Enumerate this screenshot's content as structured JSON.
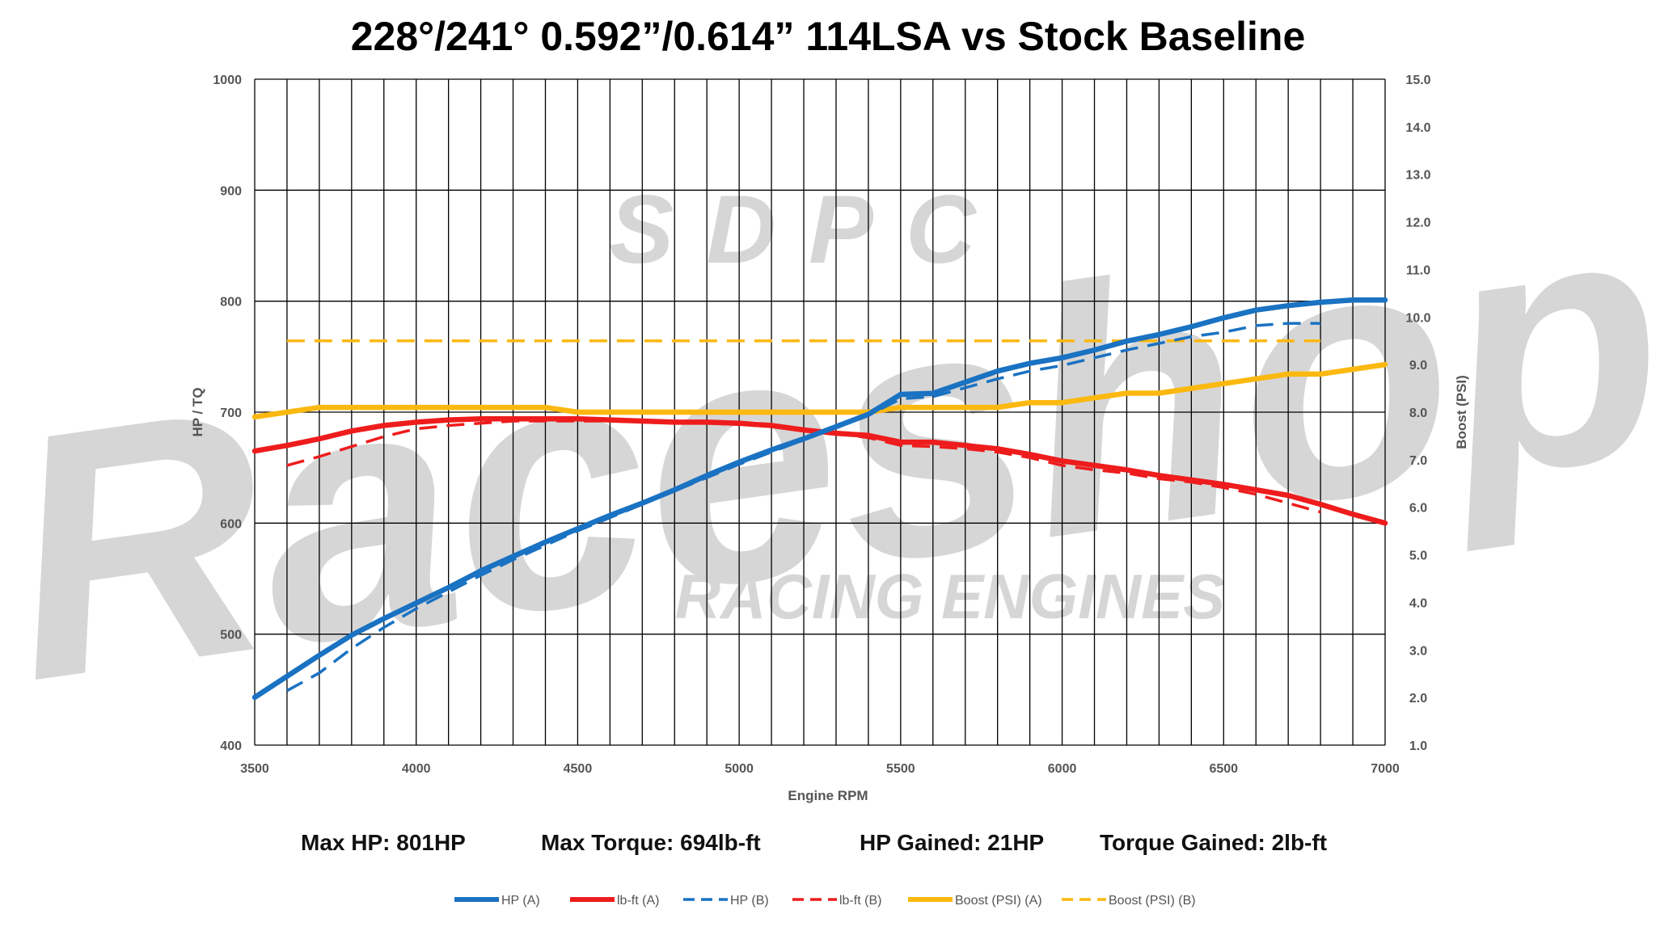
{
  "chart_data": {
    "type": "line",
    "title": "228°/241° 0.592”/0.614” 114LSA vs Stock Baseline",
    "xlabel": "Engine RPM",
    "ylabel": "HP / TQ",
    "y2label": "Boost (PSI)",
    "xlim": [
      3500,
      7000
    ],
    "ylim": [
      400,
      1000
    ],
    "y2lim": [
      1.0,
      15.0
    ],
    "x_ticks": [
      3500,
      4000,
      4500,
      5000,
      5500,
      6000,
      6500,
      7000
    ],
    "y_ticks": [
      400,
      500,
      600,
      700,
      800,
      900,
      1000
    ],
    "y2_ticks": [
      "1.0",
      "2.0",
      "3.0",
      "4.0",
      "5.0",
      "6.0",
      "7.0",
      "8.0",
      "9.0",
      "10.0",
      "11.0",
      "12.0",
      "13.0",
      "14.0",
      "15.0"
    ],
    "grid": true,
    "legend_position": "bottom",
    "watermark": [
      "SDPC",
      "Raceshop",
      "RACING ENGINES"
    ],
    "series": [
      {
        "name": "HP (A)",
        "axis": "left",
        "style": "solid",
        "color": "#1a72c2",
        "x": [
          3500,
          3600,
          3700,
          3800,
          3900,
          4000,
          4100,
          4200,
          4300,
          4400,
          4500,
          4600,
          4700,
          4800,
          4900,
          5000,
          5100,
          5200,
          5300,
          5400,
          5500,
          5600,
          5700,
          5800,
          5900,
          6000,
          6100,
          6200,
          6300,
          6400,
          6500,
          6600,
          6700,
          6800,
          6900,
          7000
        ],
        "values": [
          443,
          462,
          481,
          499,
          514,
          528,
          542,
          557,
          570,
          583,
          595,
          607,
          618,
          630,
          643,
          655,
          666,
          676,
          687,
          698,
          716,
          717,
          727,
          737,
          744,
          749,
          756,
          764,
          770,
          777,
          785,
          792,
          796,
          799,
          801,
          801
        ]
      },
      {
        "name": "lb-ft (A)",
        "axis": "left",
        "style": "solid",
        "color": "#ee1c1c",
        "x": [
          3500,
          3600,
          3700,
          3800,
          3900,
          4000,
          4100,
          4200,
          4300,
          4400,
          4500,
          4600,
          4700,
          4800,
          4900,
          5000,
          5100,
          5200,
          5300,
          5400,
          5500,
          5600,
          5700,
          5800,
          5900,
          6000,
          6100,
          6200,
          6300,
          6400,
          6500,
          6600,
          6700,
          6800,
          6900,
          7000
        ],
        "values": [
          665,
          670,
          676,
          683,
          688,
          691,
          693,
          694,
          694,
          694,
          694,
          693,
          692,
          691,
          691,
          690,
          688,
          684,
          681,
          679,
          673,
          673,
          670,
          667,
          662,
          656,
          652,
          648,
          643,
          639,
          635,
          630,
          625,
          617,
          608,
          600
        ]
      },
      {
        "name": "HP (B)",
        "axis": "left",
        "style": "dashed",
        "color": "#1a72c2",
        "x": [
          3600,
          3700,
          3800,
          3900,
          4000,
          4100,
          4200,
          4300,
          4400,
          4500,
          4600,
          4700,
          4800,
          4900,
          5000,
          5100,
          5200,
          5300,
          5400,
          5500,
          5600,
          5700,
          5800,
          5900,
          6000,
          6100,
          6200,
          6300,
          6400,
          6500,
          6600,
          6700,
          6800
        ],
        "values": [
          449,
          465,
          487,
          506,
          523,
          538,
          553,
          567,
          580,
          593,
          605,
          617,
          629,
          641,
          653,
          664,
          675,
          686,
          697,
          712,
          714,
          722,
          730,
          737,
          742,
          749,
          756,
          762,
          768,
          772,
          778,
          780,
          780
        ]
      },
      {
        "name": "lb-ft (B)",
        "axis": "left",
        "style": "dashed",
        "color": "#ee1c1c",
        "x": [
          3600,
          3700,
          3800,
          3900,
          4000,
          4100,
          4200,
          4300,
          4400,
          4500,
          4600,
          4700,
          4800,
          4900,
          5000,
          5100,
          5200,
          5300,
          5400,
          5500,
          5600,
          5700,
          5800,
          5900,
          6000,
          6100,
          6200,
          6300,
          6400,
          6500,
          6600,
          6700,
          6800
        ],
        "values": [
          652,
          660,
          669,
          678,
          685,
          688,
          690,
          692,
          692,
          692,
          692,
          691,
          690,
          690,
          689,
          687,
          684,
          681,
          677,
          670,
          669,
          667,
          664,
          659,
          652,
          648,
          645,
          640,
          637,
          632,
          626,
          618,
          610
        ]
      },
      {
        "name": "Boost (PSI) (A)",
        "axis": "right",
        "style": "solid",
        "color": "#fbb80f",
        "x": [
          3500,
          3600,
          3700,
          3800,
          3900,
          4000,
          4100,
          4200,
          4300,
          4400,
          4500,
          4600,
          4700,
          4800,
          4900,
          5000,
          5100,
          5200,
          5300,
          5400,
          5500,
          5600,
          5700,
          5800,
          5900,
          6000,
          6100,
          6200,
          6300,
          6400,
          6500,
          6600,
          6700,
          6800,
          6900,
          7000
        ],
        "values": [
          7.9,
          8.0,
          8.1,
          8.1,
          8.1,
          8.1,
          8.1,
          8.1,
          8.1,
          8.1,
          8.0,
          8.0,
          8.0,
          8.0,
          8.0,
          8.0,
          8.0,
          8.0,
          8.0,
          8.0,
          8.1,
          8.1,
          8.1,
          8.1,
          8.2,
          8.2,
          8.3,
          8.4,
          8.4,
          8.5,
          8.6,
          8.7,
          8.8,
          8.8,
          8.9,
          9.0
        ]
      },
      {
        "name": "Boost (PSI) (B)",
        "axis": "right",
        "style": "dashed",
        "color": "#fbb80f",
        "x": [
          3600,
          6800
        ],
        "values": [
          9.5,
          9.5
        ]
      }
    ]
  },
  "stats": [
    {
      "label": "Max HP: 801HP"
    },
    {
      "label": "Max Torque: 694lb-ft"
    },
    {
      "label": "HP Gained: 21HP"
    },
    {
      "label": "Torque Gained: 2lb-ft"
    }
  ]
}
